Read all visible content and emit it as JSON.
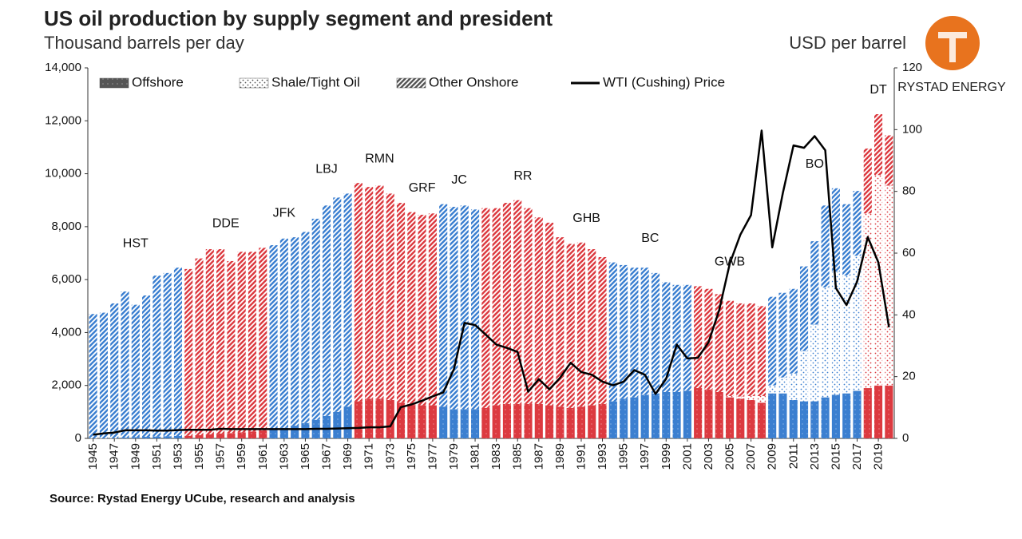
{
  "chart_data": {
    "type": "bar",
    "title": "US oil production by supply segment and president",
    "subtitle": "Thousand barrels per day",
    "y2_label": "USD per barrel",
    "logo_text": "RYSTAD ENERGY",
    "source": "Source: Rystad Energy UCube, research and analysis",
    "stacked": true,
    "categories": [
      1945,
      1946,
      1947,
      1948,
      1949,
      1950,
      1951,
      1952,
      1953,
      1954,
      1955,
      1956,
      1957,
      1958,
      1959,
      1960,
      1961,
      1962,
      1963,
      1964,
      1965,
      1966,
      1967,
      1968,
      1969,
      1970,
      1971,
      1972,
      1973,
      1974,
      1975,
      1976,
      1977,
      1978,
      1979,
      1980,
      1981,
      1982,
      1983,
      1984,
      1985,
      1986,
      1987,
      1988,
      1989,
      1990,
      1991,
      1992,
      1993,
      1994,
      1995,
      1996,
      1997,
      1998,
      1999,
      2000,
      2001,
      2002,
      2003,
      2004,
      2005,
      2006,
      2007,
      2008,
      2009,
      2010,
      2011,
      2012,
      2013,
      2014,
      2015,
      2016,
      2017,
      2018,
      2019,
      2020
    ],
    "xticks": [
      1945,
      1947,
      1949,
      1951,
      1953,
      1955,
      1957,
      1959,
      1961,
      1963,
      1965,
      1967,
      1969,
      1971,
      1973,
      1975,
      1977,
      1979,
      1981,
      1983,
      1985,
      1987,
      1989,
      1991,
      1993,
      1995,
      1997,
      1999,
      2001,
      2003,
      2005,
      2007,
      2009,
      2011,
      2013,
      2015,
      2017,
      2019
    ],
    "series": [
      {
        "name": "Offshore",
        "pattern": "solid",
        "values": [
          0,
          0,
          0,
          30,
          50,
          60,
          70,
          80,
          90,
          100,
          120,
          150,
          180,
          200,
          230,
          260,
          300,
          350,
          400,
          480,
          580,
          700,
          850,
          1000,
          1200,
          1400,
          1500,
          1500,
          1450,
          1350,
          1300,
          1250,
          1250,
          1200,
          1100,
          1100,
          1100,
          1150,
          1250,
          1300,
          1300,
          1300,
          1300,
          1250,
          1200,
          1150,
          1200,
          1250,
          1300,
          1400,
          1500,
          1550,
          1650,
          1700,
          1750,
          1750,
          1800,
          1900,
          1850,
          1750,
          1550,
          1500,
          1450,
          1350,
          1700,
          1700,
          1450,
          1400,
          1400,
          1550,
          1650,
          1700,
          1800,
          1900,
          2000,
          2000
        ]
      },
      {
        "name": "Shale/Tight Oil",
        "pattern": "dots",
        "values": [
          0,
          0,
          0,
          0,
          0,
          0,
          0,
          0,
          0,
          0,
          0,
          0,
          0,
          0,
          0,
          0,
          0,
          0,
          0,
          0,
          0,
          0,
          0,
          0,
          0,
          0,
          0,
          0,
          0,
          0,
          0,
          0,
          0,
          0,
          0,
          0,
          0,
          0,
          0,
          0,
          0,
          0,
          0,
          0,
          0,
          0,
          0,
          0,
          0,
          0,
          0,
          0,
          0,
          0,
          0,
          0,
          0,
          0,
          0,
          0,
          50,
          80,
          150,
          250,
          300,
          600,
          1000,
          1900,
          2900,
          4150,
          4650,
          4450,
          5100,
          6600,
          7950,
          7550
        ]
      },
      {
        "name": "Other Onshore",
        "pattern": "hatch",
        "values": [
          4700,
          4750,
          5100,
          5520,
          5000,
          5340,
          6080,
          6170,
          6360,
          6300,
          6680,
          7000,
          6970,
          6500,
          6820,
          6790,
          6900,
          6950,
          7150,
          7120,
          7220,
          7600,
          7950,
          8100,
          8050,
          8250,
          8000,
          8050,
          7800,
          7550,
          7250,
          7200,
          7250,
          7650,
          7650,
          7700,
          7550,
          7550,
          7450,
          7600,
          7700,
          7400,
          7050,
          6900,
          6400,
          6200,
          6200,
          5900,
          5550,
          5250,
          5050,
          4900,
          4800,
          4550,
          4150,
          4050,
          4000,
          3850,
          3800,
          3700,
          3600,
          3520,
          3500,
          3400,
          3350,
          3200,
          3200,
          3200,
          3150,
          3100,
          3150,
          2700,
          2450,
          2450,
          2300,
          1900
        ]
      },
      {
        "name": "WTI (Cushing) Price",
        "type": "line",
        "axis": "y2",
        "color": "#000000",
        "values": [
          1.2,
          1.6,
          1.9,
          2.6,
          2.6,
          2.6,
          2.5,
          2.5,
          2.7,
          2.8,
          2.8,
          2.8,
          3.1,
          3.0,
          3.0,
          3.0,
          3.0,
          3.0,
          3.0,
          3.0,
          3.0,
          3.1,
          3.1,
          3.2,
          3.3,
          3.4,
          3.6,
          3.6,
          3.9,
          10.1,
          11,
          12.2,
          13.6,
          14.9,
          22.4,
          37.4,
          36.7,
          33.6,
          30.4,
          29.3,
          28,
          15.1,
          19.2,
          15.9,
          19.6,
          24.5,
          21.5,
          20.6,
          18.4,
          17.2,
          18.4,
          22.1,
          20.6,
          14.4,
          19.3,
          30.4,
          25.9,
          26.1,
          31.1,
          41.5,
          56.6,
          66,
          72.3,
          99.7,
          61.9,
          79.5,
          94.9,
          94.1,
          97.9,
          93.3,
          48.7,
          43.2,
          50.8,
          65.2,
          57,
          36
        ]
      }
    ],
    "presidents": [
      {
        "name": "HST",
        "start": 1945,
        "end": 1953,
        "color": "#3b7fd0"
      },
      {
        "name": "DDE",
        "start": 1954,
        "end": 1961,
        "color": "#dc3a40"
      },
      {
        "name": "JFK",
        "start": 1962,
        "end": 1964,
        "color": "#3b7fd0"
      },
      {
        "name": "LBJ",
        "start": 1965,
        "end": 1969,
        "color": "#3b7fd0"
      },
      {
        "name": "RMN",
        "start": 1970,
        "end": 1974,
        "color": "#dc3a40"
      },
      {
        "name": "GRF",
        "start": 1975,
        "end": 1977,
        "color": "#dc3a40"
      },
      {
        "name": "JC",
        "start": 1978,
        "end": 1981,
        "color": "#3b7fd0"
      },
      {
        "name": "RR",
        "start": 1982,
        "end": 1989,
        "color": "#dc3a40"
      },
      {
        "name": "GHB",
        "start": 1990,
        "end": 1993,
        "color": "#dc3a40"
      },
      {
        "name": "BC",
        "start": 1994,
        "end": 2001,
        "color": "#3b7fd0"
      },
      {
        "name": "GWB",
        "start": 2002,
        "end": 2008,
        "color": "#dc3a40"
      },
      {
        "name": "BO",
        "start": 2009,
        "end": 2017,
        "color": "#3b7fd0"
      },
      {
        "name": "DT",
        "start": 2018,
        "end": 2020,
        "color": "#dc3a40"
      }
    ],
    "legend_color": "#555555",
    "ylim": [
      0,
      14000
    ],
    "yticks": [
      0,
      {
        "value": 2000,
        "label": "2,000"
      },
      {
        "value": 4000,
        "label": "4,000"
      },
      {
        "value": 6000,
        "label": "6,000"
      },
      {
        "value": 8000,
        "label": "8,000"
      },
      {
        "value": 10000,
        "label": "10,000"
      },
      {
        "value": 12000,
        "label": "12,000"
      },
      {
        "value": 14000,
        "label": "14,000"
      }
    ],
    "y2lim": [
      0,
      120
    ],
    "y2ticks": [
      0,
      20,
      40,
      60,
      80,
      100,
      120
    ],
    "grid": false
  }
}
